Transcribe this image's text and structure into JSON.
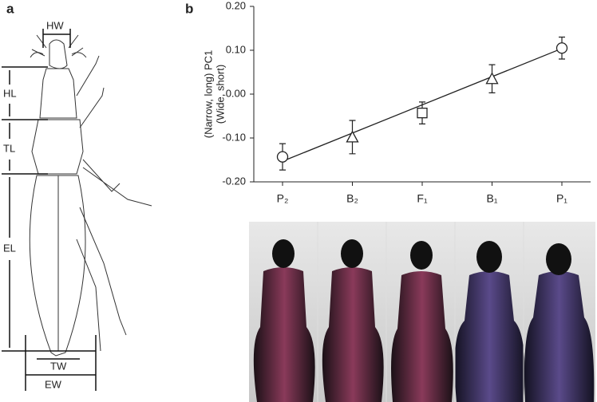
{
  "panel_labels": [
    "a",
    "b"
  ],
  "diagram": {
    "labels": [
      "HW",
      "HL",
      "TL",
      "EL",
      "TW",
      "EW"
    ]
  },
  "chart_data": {
    "type": "line",
    "y_label": [
      "(Narrow, long) PC1",
      "(Wide, short)"
    ],
    "categories": [
      "P₂",
      "B₂",
      "F₁",
      "B₁",
      "P₁"
    ],
    "values": [
      -0.143,
      -0.098,
      -0.043,
      0.035,
      0.105
    ],
    "errors": [
      0.03,
      0.038,
      0.025,
      0.032,
      0.025
    ],
    "markers": [
      "circle",
      "triangle",
      "square",
      "triangle",
      "circle"
    ],
    "trend": [
      -0.153,
      0.104
    ],
    "ylim": [
      -0.2,
      0.2
    ],
    "yticks": [
      {
        "value": -0.2,
        "label": "-0.20"
      },
      {
        "value": -0.1,
        "label": "-0.10"
      },
      {
        "value": 0,
        "label": "0.00"
      },
      {
        "value": 0.1,
        "label": "0.10"
      },
      {
        "value": 0.2,
        "label": "0.20"
      }
    ],
    "color": "#222"
  }
}
